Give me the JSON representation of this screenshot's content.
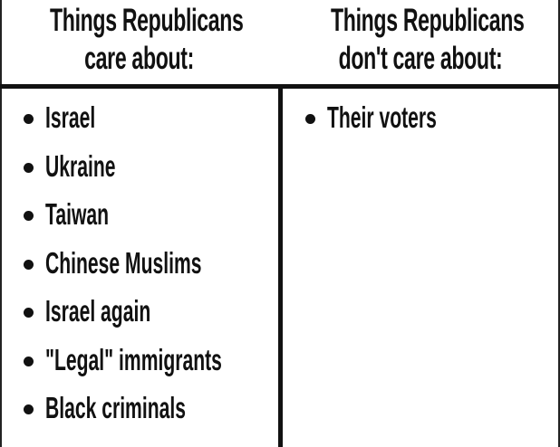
{
  "columns": [
    {
      "header": [
        "Things Republicans",
        "care about:"
      ],
      "items": [
        "Israel",
        "Ukraine",
        "Taiwan",
        "Chinese Muslims",
        "Israel again",
        "\"Legal\" immigrants",
        "Black criminals"
      ]
    },
    {
      "header": [
        "Things Republicans",
        "don't care about:"
      ],
      "items": [
        "Their voters"
      ]
    }
  ]
}
